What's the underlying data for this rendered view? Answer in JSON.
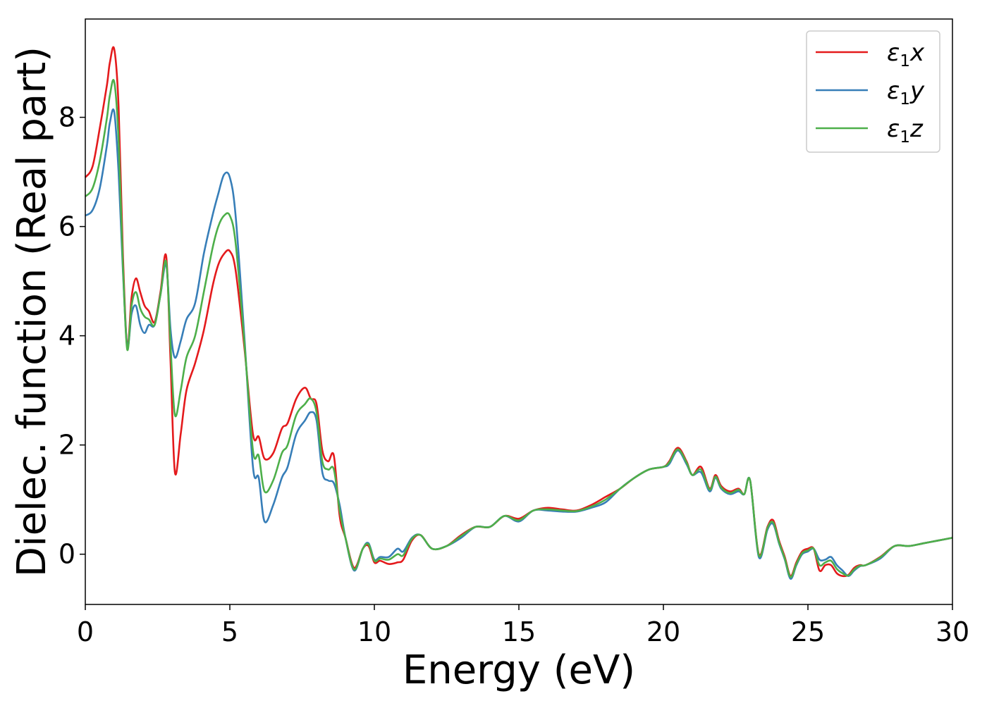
{
  "chart_data": {
    "type": "line",
    "title": "",
    "xlabel": "Energy (eV)",
    "ylabel": "Dielec. function (Real part)",
    "xlim": [
      0,
      30
    ],
    "ylim": [
      -0.92,
      9.8
    ],
    "xticks": [
      0,
      5,
      10,
      15,
      20,
      25,
      30
    ],
    "yticks": [
      0,
      2,
      4,
      6,
      8
    ],
    "grid": false,
    "legend_position": "top-right",
    "x": [
      0,
      0.25,
      0.5,
      0.75,
      0.85,
      1.0,
      1.15,
      1.3,
      1.45,
      1.6,
      1.75,
      1.9,
      2.05,
      2.2,
      2.4,
      2.6,
      2.8,
      2.95,
      3.1,
      3.3,
      3.5,
      3.8,
      4.1,
      4.4,
      4.6,
      4.8,
      5.0,
      5.2,
      5.5,
      5.8,
      6.0,
      6.2,
      6.5,
      6.8,
      7.0,
      7.3,
      7.6,
      7.8,
      8.0,
      8.2,
      8.4,
      8.6,
      8.8,
      9.0,
      9.3,
      9.6,
      9.8,
      10.0,
      10.2,
      10.5,
      10.8,
      11.0,
      11.3,
      11.6,
      12.0,
      12.5,
      13.0,
      13.5,
      14.0,
      14.5,
      15.0,
      15.5,
      16.0,
      16.5,
      17.0,
      17.5,
      18.0,
      18.5,
      19.0,
      19.5,
      20.0,
      20.2,
      20.5,
      20.8,
      21.0,
      21.3,
      21.6,
      21.8,
      22.0,
      22.3,
      22.6,
      22.8,
      23.0,
      23.3,
      23.6,
      23.8,
      24.0,
      24.2,
      24.4,
      24.6,
      24.8,
      25.0,
      25.2,
      25.4,
      25.6,
      25.8,
      26.0,
      26.2,
      26.4,
      26.6,
      26.8,
      27.0,
      27.5,
      28.0,
      28.5,
      29.0,
      29.5,
      30.0
    ],
    "series": [
      {
        "name": "ε1x",
        "color": "#e41a1c",
        "values": [
          6.9,
          7.1,
          7.8,
          8.6,
          9.0,
          9.25,
          8.2,
          5.5,
          3.8,
          4.7,
          5.05,
          4.8,
          4.55,
          4.45,
          4.25,
          4.8,
          5.45,
          3.5,
          1.5,
          2.2,
          3.0,
          3.5,
          4.1,
          4.9,
          5.3,
          5.5,
          5.55,
          5.2,
          3.8,
          2.2,
          2.15,
          1.75,
          1.85,
          2.3,
          2.4,
          2.85,
          3.05,
          2.85,
          2.75,
          1.9,
          1.7,
          1.8,
          0.7,
          0.3,
          -0.25,
          0.1,
          0.15,
          -0.15,
          -0.12,
          -0.18,
          -0.15,
          -0.1,
          0.25,
          0.35,
          0.1,
          0.15,
          0.35,
          0.5,
          0.5,
          0.7,
          0.65,
          0.8,
          0.85,
          0.82,
          0.8,
          0.9,
          1.05,
          1.2,
          1.4,
          1.55,
          1.6,
          1.7,
          1.95,
          1.7,
          1.45,
          1.6,
          1.2,
          1.45,
          1.25,
          1.15,
          1.2,
          1.1,
          1.35,
          0.0,
          0.5,
          0.62,
          0.25,
          -0.05,
          -0.4,
          -0.15,
          0.05,
          0.1,
          0.1,
          -0.3,
          -0.2,
          -0.2,
          -0.35,
          -0.4,
          -0.38,
          -0.25,
          -0.2,
          -0.2,
          -0.05,
          0.15,
          0.15,
          0.2,
          0.25,
          0.3
        ]
      },
      {
        "name": "ε1y",
        "color": "#377eb8",
        "values": [
          6.2,
          6.3,
          6.7,
          7.5,
          7.9,
          8.1,
          7.0,
          5.2,
          3.8,
          4.4,
          4.55,
          4.2,
          4.05,
          4.2,
          4.2,
          4.75,
          5.3,
          4.1,
          3.6,
          3.9,
          4.3,
          4.6,
          5.5,
          6.2,
          6.6,
          6.95,
          6.9,
          6.2,
          4.0,
          1.6,
          1.4,
          0.6,
          0.9,
          1.4,
          1.6,
          2.2,
          2.45,
          2.6,
          2.45,
          1.5,
          1.35,
          1.3,
          0.9,
          0.3,
          -0.3,
          0.1,
          0.2,
          -0.1,
          -0.05,
          -0.05,
          0.1,
          0.05,
          0.3,
          0.35,
          0.1,
          0.15,
          0.3,
          0.5,
          0.5,
          0.7,
          0.6,
          0.8,
          0.8,
          0.78,
          0.78,
          0.85,
          0.95,
          1.2,
          1.4,
          1.55,
          1.6,
          1.65,
          1.9,
          1.65,
          1.45,
          1.5,
          1.15,
          1.4,
          1.2,
          1.1,
          1.15,
          1.1,
          1.35,
          -0.05,
          0.45,
          0.55,
          0.2,
          -0.1,
          -0.45,
          -0.2,
          0.0,
          0.05,
          0.1,
          -0.1,
          -0.1,
          -0.05,
          -0.2,
          -0.3,
          -0.4,
          -0.3,
          -0.22,
          -0.2,
          -0.08,
          0.15,
          0.15,
          0.2,
          0.25,
          0.3
        ]
      },
      {
        "name": "ε1z",
        "color": "#4daf4a",
        "values": [
          6.55,
          6.7,
          7.2,
          8.0,
          8.4,
          8.65,
          7.6,
          5.3,
          3.75,
          4.55,
          4.8,
          4.5,
          4.35,
          4.3,
          4.2,
          4.75,
          5.35,
          3.8,
          2.55,
          3.0,
          3.6,
          4.0,
          4.8,
          5.6,
          6.0,
          6.2,
          6.2,
          5.7,
          3.9,
          1.9,
          1.8,
          1.15,
          1.35,
          1.85,
          2.0,
          2.55,
          2.75,
          2.85,
          2.6,
          1.7,
          1.55,
          1.55,
          0.8,
          0.3,
          -0.28,
          0.1,
          0.18,
          -0.12,
          -0.08,
          -0.1,
          0.0,
          -0.02,
          0.28,
          0.35,
          0.1,
          0.15,
          0.33,
          0.5,
          0.5,
          0.7,
          0.62,
          0.8,
          0.82,
          0.8,
          0.79,
          0.87,
          1.0,
          1.2,
          1.4,
          1.55,
          1.6,
          1.68,
          1.92,
          1.68,
          1.45,
          1.55,
          1.18,
          1.42,
          1.22,
          1.12,
          1.18,
          1.1,
          1.35,
          -0.02,
          0.48,
          0.58,
          0.22,
          -0.08,
          -0.42,
          -0.18,
          0.02,
          0.07,
          0.1,
          -0.2,
          -0.15,
          -0.12,
          -0.27,
          -0.35,
          -0.39,
          -0.28,
          -0.21,
          -0.2,
          -0.06,
          0.15,
          0.15,
          0.2,
          0.25,
          0.3
        ]
      }
    ]
  }
}
